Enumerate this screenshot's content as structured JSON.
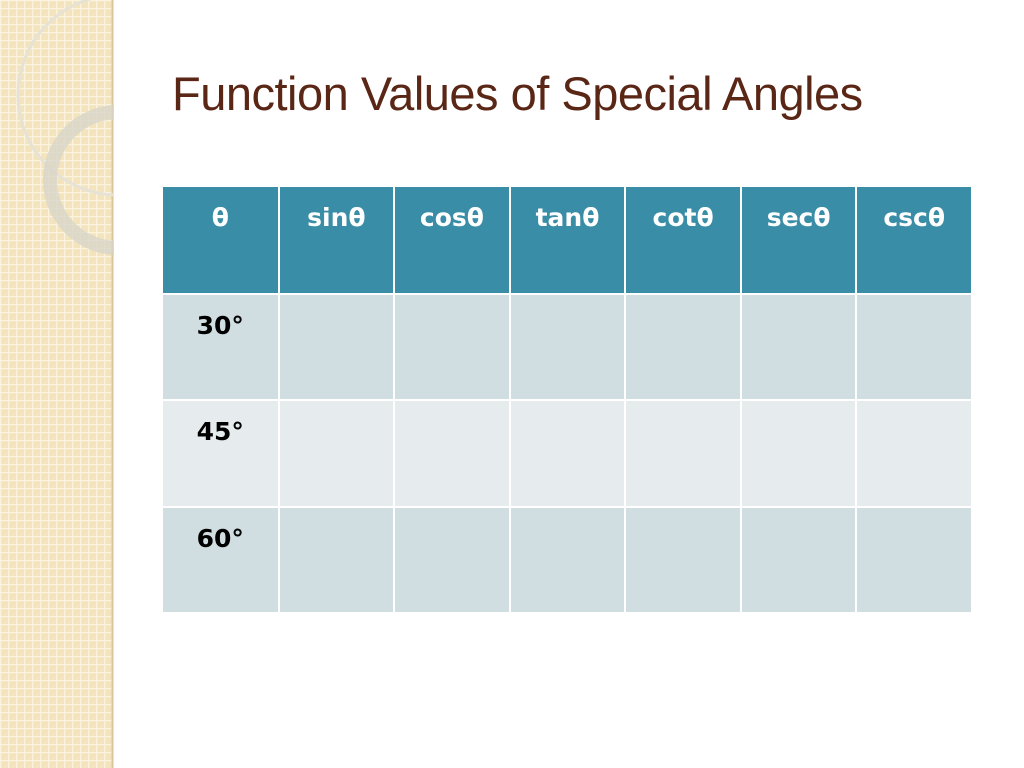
{
  "title": "Function Values of Special Angles",
  "table": {
    "header": [
      "θ",
      "sinθ",
      "cosθ",
      "tanθ",
      "cotθ",
      "secθ",
      "cscθ"
    ],
    "rows": [
      [
        "30°"
      ],
      [
        "45°"
      ],
      [
        "60°"
      ]
    ]
  }
}
